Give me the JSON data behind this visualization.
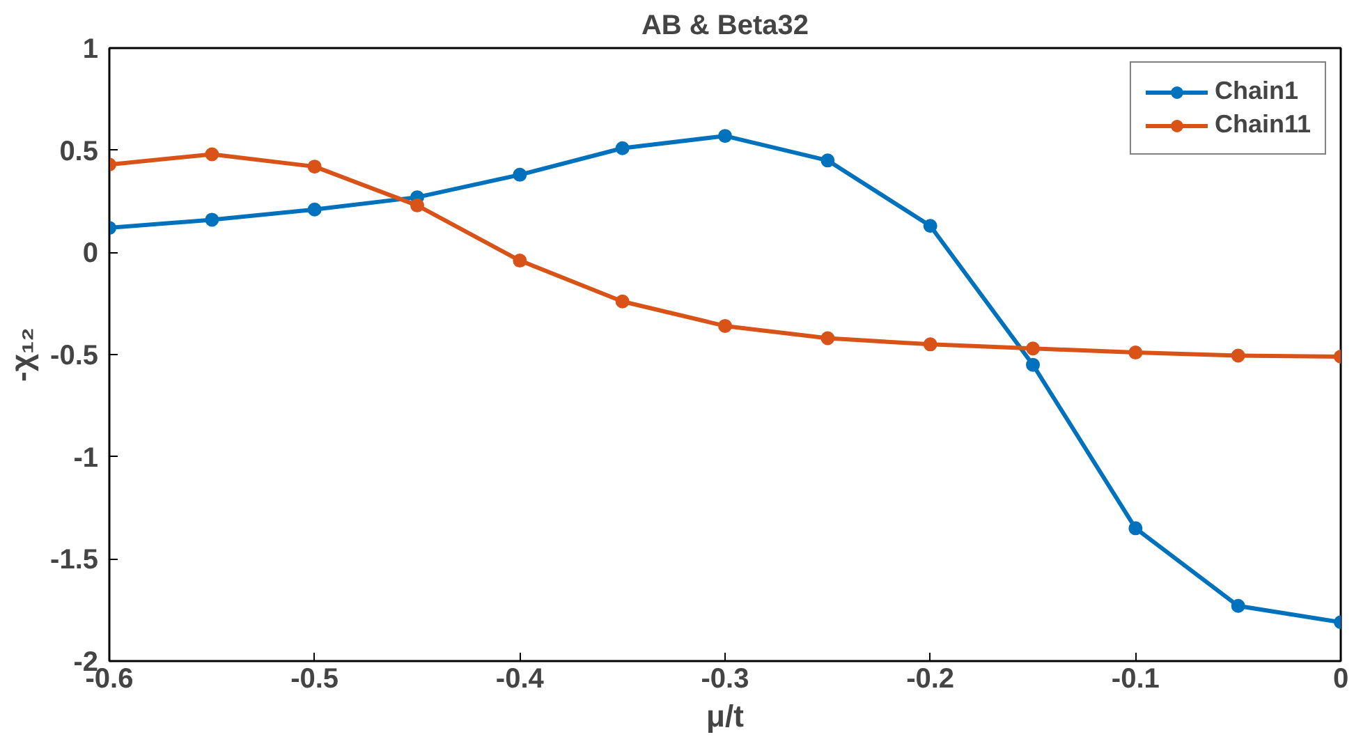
{
  "chart_data": {
    "type": "line",
    "title": "AB & Beta32",
    "xlabel": "μ/t",
    "ylabel": "-χ₁₂",
    "x": [
      -0.6,
      -0.55,
      -0.5,
      -0.45,
      -0.4,
      -0.35,
      -0.3,
      -0.25,
      -0.2,
      -0.15,
      -0.1,
      -0.05,
      0
    ],
    "series": [
      {
        "name": "Chain1",
        "color": "#0072bd",
        "values": [
          0.12,
          0.16,
          0.21,
          0.27,
          0.38,
          0.51,
          0.57,
          0.45,
          0.13,
          -0.55,
          -1.35,
          -1.73,
          -1.81
        ]
      },
      {
        "name": "Chain11",
        "color": "#d95319",
        "values": [
          0.43,
          0.48,
          0.42,
          0.23,
          -0.04,
          -0.24,
          -0.36,
          -0.42,
          -0.45,
          -0.47,
          -0.49,
          -0.505,
          -0.51
        ]
      }
    ],
    "xlim": [
      -0.6,
      0
    ],
    "ylim": [
      -2,
      1
    ],
    "xticks": [
      -0.6,
      -0.5,
      -0.4,
      -0.3,
      -0.2,
      -0.1,
      0
    ],
    "yticks": [
      -2,
      -1.5,
      -1,
      -0.5,
      0,
      0.5,
      1
    ],
    "grid": false,
    "legend": "top right",
    "marker": "circle",
    "line_style": "solid"
  }
}
